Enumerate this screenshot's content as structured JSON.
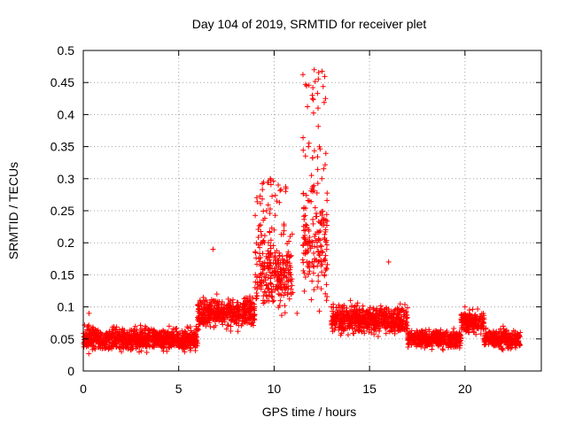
{
  "chart_data": {
    "type": "scatter",
    "title": "Day 104 of 2019, SRMTID for receiver plet",
    "xlabel": "GPS time / hours",
    "ylabel": "SRMTID / TECUs",
    "xlim": [
      0,
      24
    ],
    "ylim": [
      0,
      0.5
    ],
    "xticks": [
      0,
      5,
      10,
      15,
      20
    ],
    "xtick_labels": [
      "0",
      "5",
      "10",
      "15",
      "20"
    ],
    "yticks": [
      0,
      0.05,
      0.1,
      0.15,
      0.2,
      0.25,
      0.3,
      0.35,
      0.4,
      0.45,
      0.5
    ],
    "ytick_labels": [
      "0",
      "0.05",
      "0.1",
      "0.15",
      "0.2",
      "0.25",
      "0.3",
      "0.35",
      "0.4",
      "0.45",
      "0.5"
    ],
    "grid": true,
    "marker": "plus",
    "color": "#ff0000",
    "x_range_of_data": [
      0,
      22.9
    ],
    "series": [
      {
        "name": "SRMTID",
        "description_of_trend": [
          {
            "x_start": 0,
            "x_end": 6,
            "typical": 0.05,
            "spread": 0.025
          },
          {
            "x_start": 6,
            "x_end": 9,
            "typical": 0.09,
            "spread": 0.03
          },
          {
            "x_start": 9,
            "x_end": 11,
            "typical": 0.15,
            "spread": 0.07,
            "peak": 0.3
          },
          {
            "x_start": 11.5,
            "x_end": 12.8,
            "typical": 0.2,
            "spread": 0.12,
            "peak": 0.47
          },
          {
            "x_start": 13,
            "x_end": 17,
            "typical": 0.08,
            "spread": 0.03
          },
          {
            "x_start": 17,
            "x_end": 19.8,
            "typical": 0.05,
            "spread": 0.02
          },
          {
            "x_start": 19.8,
            "x_end": 21,
            "typical": 0.075,
            "spread": 0.025
          },
          {
            "x_start": 21,
            "x_end": 22.9,
            "typical": 0.05,
            "spread": 0.02
          }
        ],
        "sample_points": [
          [
            0.1,
            0.05
          ],
          [
            0.3,
            0.09
          ],
          [
            0.6,
            0.06
          ],
          [
            1.0,
            0.04
          ],
          [
            1.5,
            0.05
          ],
          [
            2.0,
            0.03
          ],
          [
            2.5,
            0.045
          ],
          [
            3.0,
            0.04
          ],
          [
            3.5,
            0.055
          ],
          [
            4.0,
            0.06
          ],
          [
            4.5,
            0.07
          ],
          [
            5.0,
            0.05
          ],
          [
            5.5,
            0.04
          ],
          [
            6.0,
            0.08
          ],
          [
            6.5,
            0.1
          ],
          [
            6.8,
            0.19
          ],
          [
            7.0,
            0.12
          ],
          [
            7.5,
            0.09
          ],
          [
            8.0,
            0.1
          ],
          [
            8.5,
            0.11
          ],
          [
            9.0,
            0.13
          ],
          [
            9.3,
            0.2
          ],
          [
            9.6,
            0.25
          ],
          [
            9.8,
            0.3
          ],
          [
            10.0,
            0.22
          ],
          [
            10.3,
            0.18
          ],
          [
            10.6,
            0.28
          ],
          [
            10.9,
            0.12
          ],
          [
            11.2,
            0.09
          ],
          [
            11.6,
            0.2
          ],
          [
            11.8,
            0.35
          ],
          [
            12.0,
            0.43
          ],
          [
            12.1,
            0.47
          ],
          [
            12.3,
            0.41
          ],
          [
            12.5,
            0.3
          ],
          [
            12.7,
            0.18
          ],
          [
            13.0,
            0.1
          ],
          [
            13.5,
            0.09
          ],
          [
            14.0,
            0.11
          ],
          [
            14.5,
            0.07
          ],
          [
            15.0,
            0.08
          ],
          [
            15.5,
            0.09
          ],
          [
            16.0,
            0.17
          ],
          [
            16.5,
            0.07
          ],
          [
            17.0,
            0.05
          ],
          [
            17.5,
            0.06
          ],
          [
            18.0,
            0.04
          ],
          [
            18.5,
            0.05
          ],
          [
            19.0,
            0.06
          ],
          [
            19.5,
            0.04
          ],
          [
            20.0,
            0.1
          ],
          [
            20.5,
            0.08
          ],
          [
            21.0,
            0.05
          ],
          [
            21.5,
            0.045
          ],
          [
            22.0,
            0.07
          ],
          [
            22.5,
            0.04
          ],
          [
            22.9,
            0.06
          ]
        ]
      }
    ]
  }
}
